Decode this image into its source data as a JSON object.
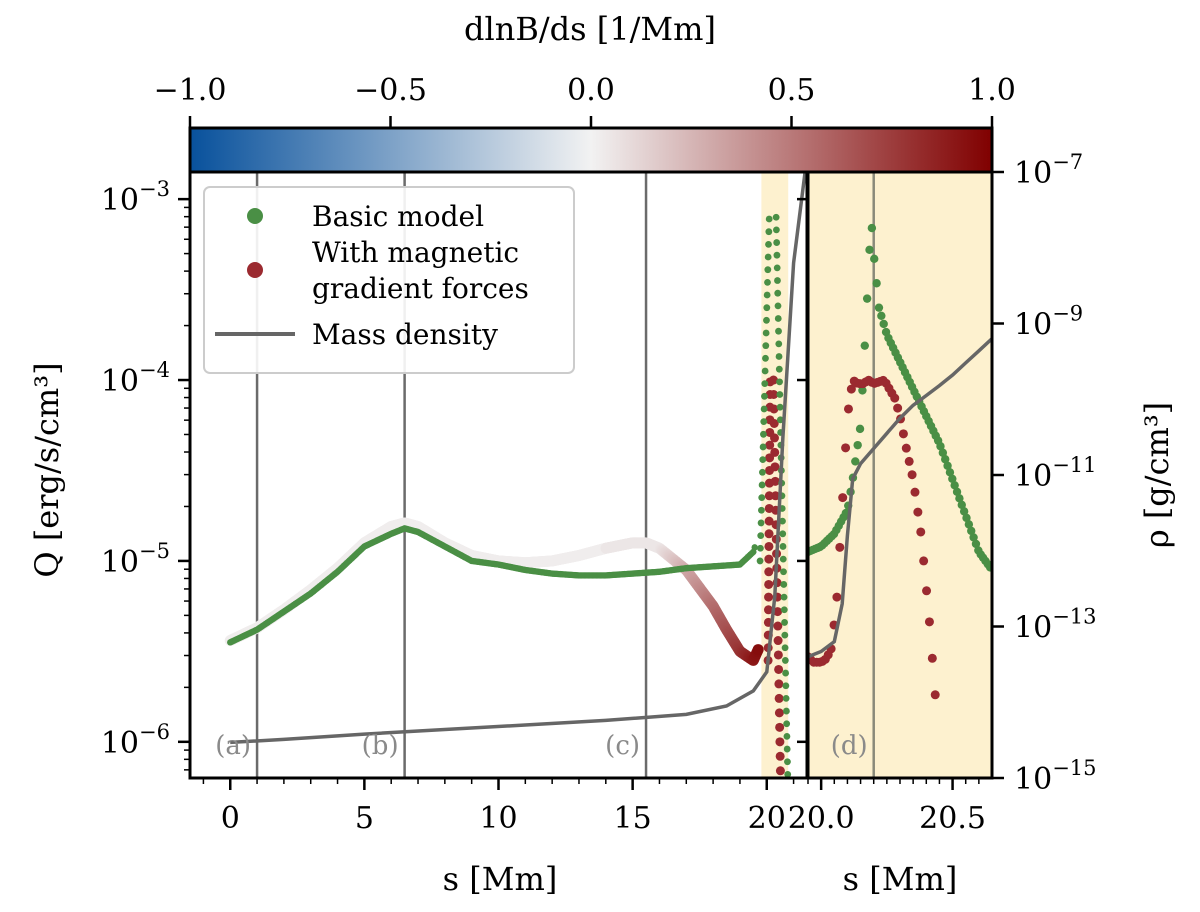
{
  "chart_data": {
    "type": "scatter",
    "colorbar": {
      "label": "dlnB/ds [1/Mm]",
      "range": [
        -1.0,
        1.0
      ],
      "ticks": [
        "−1.0",
        "−0.5",
        "0.0",
        "0.5",
        "1.0"
      ],
      "tick_values": [
        -1.0,
        -0.5,
        0.0,
        0.5,
        1.0
      ],
      "colormap": [
        "#08519c",
        "#f2f2f2",
        "#800000"
      ]
    },
    "left_panel": {
      "xlabel": "s [Mm]",
      "ylabel": "Q [erg/s/cm³]",
      "xlim": [
        -1.5,
        21.5
      ],
      "ylim_log10": [
        -6.2,
        -2.85
      ],
      "x_ticks": [
        "0",
        "5",
        "10",
        "15",
        "20"
      ],
      "x_tick_values": [
        0,
        5,
        10,
        15,
        20
      ],
      "y_ticks": [
        "10−6",
        "10−5",
        "10−4",
        "10−3"
      ],
      "y_tick_values_log10": [
        -6,
        -5,
        -4,
        -3
      ],
      "vertical_lines_s": [
        1.0,
        6.5,
        15.5
      ],
      "highlight_span_s": [
        19.8,
        20.8
      ],
      "panel_labels": [
        "(a)",
        "(b)",
        "(c)"
      ]
    },
    "right_panel": {
      "xlabel": "s [Mm]",
      "ylabel": "ρ [g/cm³]",
      "xlim": [
        19.95,
        20.65
      ],
      "x_ticks": [
        "20.0",
        "20.5"
      ],
      "x_tick_values": [
        20.0,
        20.5
      ],
      "vertical_lines_s": [
        20.2
      ],
      "panel_labels": [
        "(d)"
      ],
      "highlight": true
    },
    "density_axis": {
      "label": "ρ [g/cm³]",
      "ylim_log10": [
        -15,
        -7
      ],
      "ticks": [
        "10−7",
        "10−9",
        "10−11",
        "10−13",
        "10−15"
      ],
      "tick_values_log10": [
        -7,
        -9,
        -11,
        -13,
        -15
      ]
    },
    "legend": {
      "position": "upper-left",
      "entries": [
        {
          "label": "Basic model",
          "color": "#4a8f45",
          "marker": "dot"
        },
        {
          "label": "With magnetic gradient forces",
          "color": "#9b2a30",
          "marker": "dot"
        },
        {
          "label": "Mass density",
          "color": "#666666",
          "marker": "line"
        }
      ]
    },
    "series": [
      {
        "name": "Basic model",
        "color": "#4a8f45",
        "x_left": [
          0,
          1,
          2,
          3,
          4,
          5,
          6,
          6.5,
          7,
          8,
          9,
          10,
          11,
          12,
          13,
          14,
          15,
          16,
          17,
          18,
          19,
          19.5,
          19.8,
          20.0,
          20.1,
          20.2
        ],
        "log10_Q_left": [
          -5.45,
          -5.38,
          -5.28,
          -5.18,
          -5.06,
          -4.92,
          -4.85,
          -4.82,
          -4.84,
          -4.92,
          -5.0,
          -5.02,
          -5.05,
          -5.07,
          -5.08,
          -5.08,
          -5.07,
          -5.06,
          -5.04,
          -5.03,
          -5.02,
          -4.95,
          -4.8,
          -4.3,
          -3.6,
          -3.05
        ],
        "x_right": [
          19.95,
          20.0,
          20.05,
          20.1,
          20.12,
          20.15,
          20.17,
          20.19,
          20.2,
          20.22,
          20.25,
          20.3,
          20.35,
          20.4,
          20.45,
          20.5,
          20.55,
          20.6,
          20.65
        ],
        "log10_Q_right": [
          -4.95,
          -4.92,
          -4.85,
          -4.72,
          -4.55,
          -4.25,
          -3.7,
          -3.1,
          -3.3,
          -3.6,
          -3.75,
          -3.9,
          -4.05,
          -4.2,
          -4.35,
          -4.55,
          -4.75,
          -4.95,
          -5.05
        ]
      },
      {
        "name": "With magnetic gradient forces",
        "color": "#9b2a30",
        "x_left": [
          0,
          1,
          2,
          3,
          4,
          5,
          6,
          6.5,
          7,
          8,
          9,
          10,
          11,
          12,
          13,
          14,
          15,
          15.5,
          16,
          17,
          18,
          18.5,
          19,
          19.5,
          19.8,
          20.0,
          20.1
        ],
        "log10_Q_left": [
          -5.44,
          -5.37,
          -5.27,
          -5.16,
          -5.04,
          -4.9,
          -4.81,
          -4.79,
          -4.81,
          -4.9,
          -4.97,
          -5.0,
          -5.01,
          -5.0,
          -4.97,
          -4.93,
          -4.9,
          -4.9,
          -4.93,
          -5.05,
          -5.25,
          -5.38,
          -5.5,
          -5.55,
          -5.45,
          -4.8,
          -4.1
        ],
        "x_right": [
          19.95,
          19.97,
          20.0,
          20.02,
          20.04,
          20.06,
          20.08,
          20.1,
          20.12,
          20.14,
          20.16,
          20.18,
          20.2,
          20.22,
          20.24,
          20.26,
          20.28,
          20.3,
          20.32,
          20.35,
          20.38,
          20.41,
          20.44
        ],
        "log10_Q_right": [
          -5.53,
          -5.56,
          -5.56,
          -5.54,
          -5.48,
          -5.2,
          -4.7,
          -4.2,
          -4.0,
          -4.02,
          -4.02,
          -4.0,
          -4.02,
          -4.01,
          -4.0,
          -4.05,
          -4.1,
          -4.2,
          -4.35,
          -4.55,
          -4.85,
          -5.3,
          -5.85
        ]
      },
      {
        "name": "Mass density",
        "color": "#666666",
        "x_left": [
          0,
          2,
          5,
          8,
          11,
          14,
          17,
          18.5,
          19.5,
          20.0,
          20.3,
          20.6,
          21.0,
          21.5
        ],
        "log10_rho_left": [
          -14.53,
          -14.49,
          -14.42,
          -14.36,
          -14.3,
          -14.24,
          -14.16,
          -14.05,
          -13.85,
          -13.6,
          -12.6,
          -10.5,
          -8.2,
          -6.8
        ],
        "x_right": [
          19.95,
          20.0,
          20.05,
          20.08,
          20.1,
          20.12,
          20.15,
          20.2,
          20.25,
          20.3,
          20.35,
          20.4,
          20.45,
          20.5,
          20.55,
          20.6,
          20.65
        ],
        "log10_rho_right": [
          -13.4,
          -13.33,
          -13.2,
          -12.7,
          -11.8,
          -11.05,
          -10.85,
          -10.65,
          -10.45,
          -10.25,
          -10.08,
          -9.95,
          -9.82,
          -9.68,
          -9.52,
          -9.36,
          -9.2
        ]
      }
    ]
  }
}
